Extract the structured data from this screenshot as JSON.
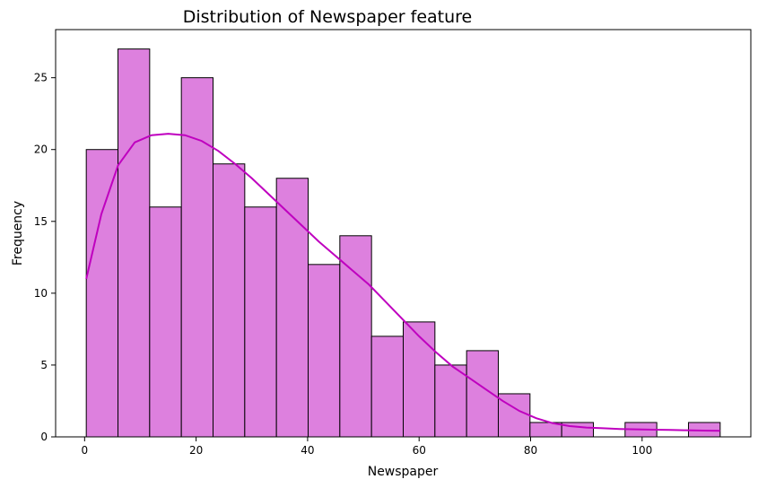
{
  "chart_data": {
    "type": "bar",
    "title": "Distribution of Newspaper feature",
    "xlabel": "Newspaper",
    "ylabel": "Frequency",
    "xlim": [
      -5.2,
      119.5
    ],
    "ylim": [
      0,
      28.35
    ],
    "x_ticks": [
      0,
      20,
      40,
      60,
      80,
      100
    ],
    "y_ticks": [
      0,
      5,
      10,
      15,
      20,
      25
    ],
    "bin_edges": [
      0.3,
      5.985,
      11.67,
      17.355,
      23.04,
      28.725,
      34.41,
      40.095,
      45.78,
      51.465,
      57.15,
      62.835,
      68.52,
      74.205,
      79.89,
      85.575,
      91.26,
      96.945,
      102.63,
      108.315,
      114.0
    ],
    "values": [
      20,
      27,
      16,
      25,
      19,
      16,
      18,
      12,
      14,
      7,
      8,
      5,
      6,
      3,
      1,
      1,
      0,
      1,
      0,
      1
    ],
    "bar_color": "#dd80de",
    "bar_edge_color": "#000000",
    "kde": {
      "color": "#bf00bf",
      "x": [
        0.3,
        3,
        6,
        9,
        12,
        15,
        18,
        21,
        24,
        27,
        30,
        33,
        36,
        39,
        42,
        45,
        48,
        51,
        54,
        57,
        60,
        63,
        66,
        69,
        72,
        75,
        78,
        81,
        84,
        87,
        90,
        93,
        96,
        99,
        102,
        105,
        108,
        111,
        114
      ],
      "y": [
        11.0,
        15.5,
        18.9,
        20.5,
        21.0,
        21.1,
        21.0,
        20.6,
        19.9,
        19.0,
        18.0,
        16.9,
        15.8,
        14.7,
        13.6,
        12.6,
        11.6,
        10.6,
        9.4,
        8.2,
        7.0,
        5.9,
        4.9,
        4.1,
        3.3,
        2.5,
        1.8,
        1.3,
        0.95,
        0.75,
        0.65,
        0.6,
        0.55,
        0.52,
        0.5,
        0.48,
        0.46,
        0.44,
        0.42
      ]
    },
    "grid": false,
    "legend": "none"
  }
}
